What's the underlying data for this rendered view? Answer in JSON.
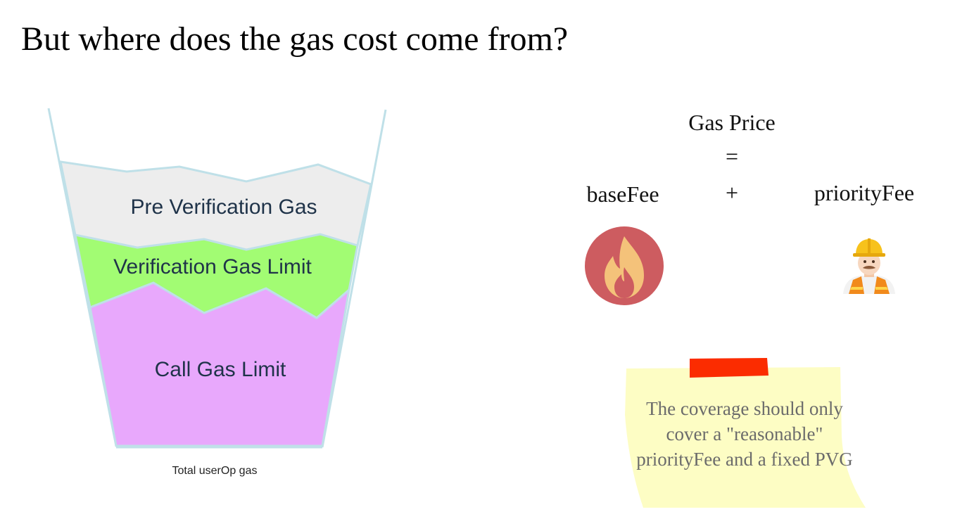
{
  "slide": {
    "title": "But where does the gas cost come from?"
  },
  "cup": {
    "layers": [
      {
        "label": "Pre Verification Gas",
        "color": "#ededed"
      },
      {
        "label": "Verification Gas Limit",
        "color": "#a2fc73"
      },
      {
        "label": "Call Gas Limit",
        "color": "#e8a8fc"
      }
    ],
    "outline_color": "#bfe0e8",
    "caption": "Total userOp gas"
  },
  "formula": {
    "gas_price": "Gas Price",
    "equals": "=",
    "base_fee": "baseFee",
    "plus": "+",
    "priority_fee": "priorityFee",
    "fire_icon": "fire-icon",
    "worker_icon": "construction-worker-icon"
  },
  "sticky_note": {
    "lines": [
      "The coverage should only",
      "cover a \"reasonable\"",
      "priorityFee and a fixed PVG"
    ],
    "note_color": "#fdfdc4",
    "tape_color": "#fb2c00"
  }
}
